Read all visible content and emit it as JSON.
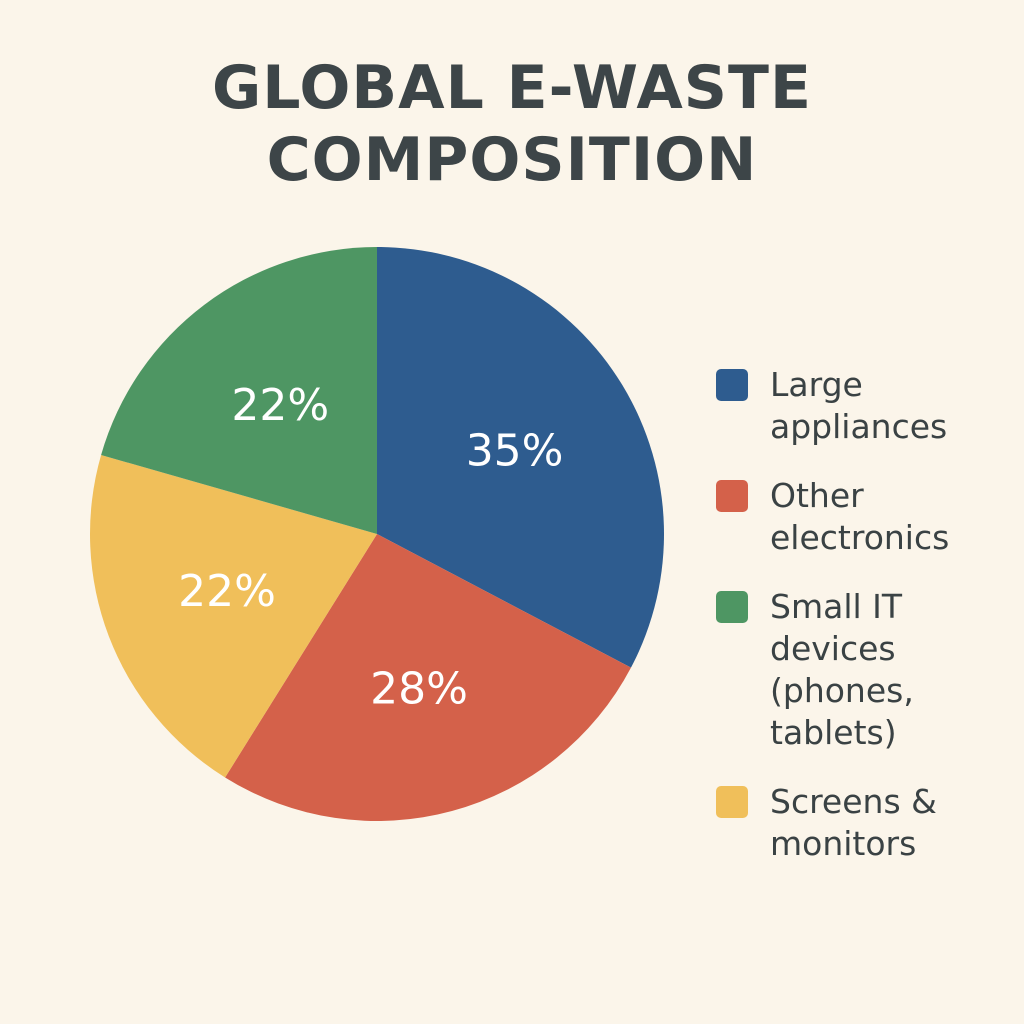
{
  "title_lines": [
    "GLOBAL E-WASTE",
    "COMPOSITION"
  ],
  "chart_data": {
    "type": "pie",
    "title": "GLOBAL E-WASTE COMPOSITION",
    "start_angle_deg": 0,
    "direction": "clockwise",
    "slices": [
      {
        "name": "Large appliances",
        "value": 35,
        "label": "35%",
        "color": "#2e5c8f"
      },
      {
        "name": "Other electronics",
        "value": 28,
        "label": "28%",
        "color": "#d4614a"
      },
      {
        "name": "Screens & monitors",
        "value": 22,
        "label": "22%",
        "color": "#f0bf5a"
      },
      {
        "name": "Small IT devices (phones, tablets)",
        "value": 22,
        "label": "22%",
        "color": "#4e9663"
      }
    ],
    "legend_position": "right"
  },
  "legend": {
    "items": [
      {
        "label": "Large appliances",
        "color": "#2e5c8f"
      },
      {
        "label": "Other electronics",
        "color": "#d4614a"
      },
      {
        "label": "Small IT devices (phones, tablets)",
        "color": "#4e9663"
      },
      {
        "label": "Screens & monitors",
        "color": "#f0bf5a"
      }
    ]
  }
}
